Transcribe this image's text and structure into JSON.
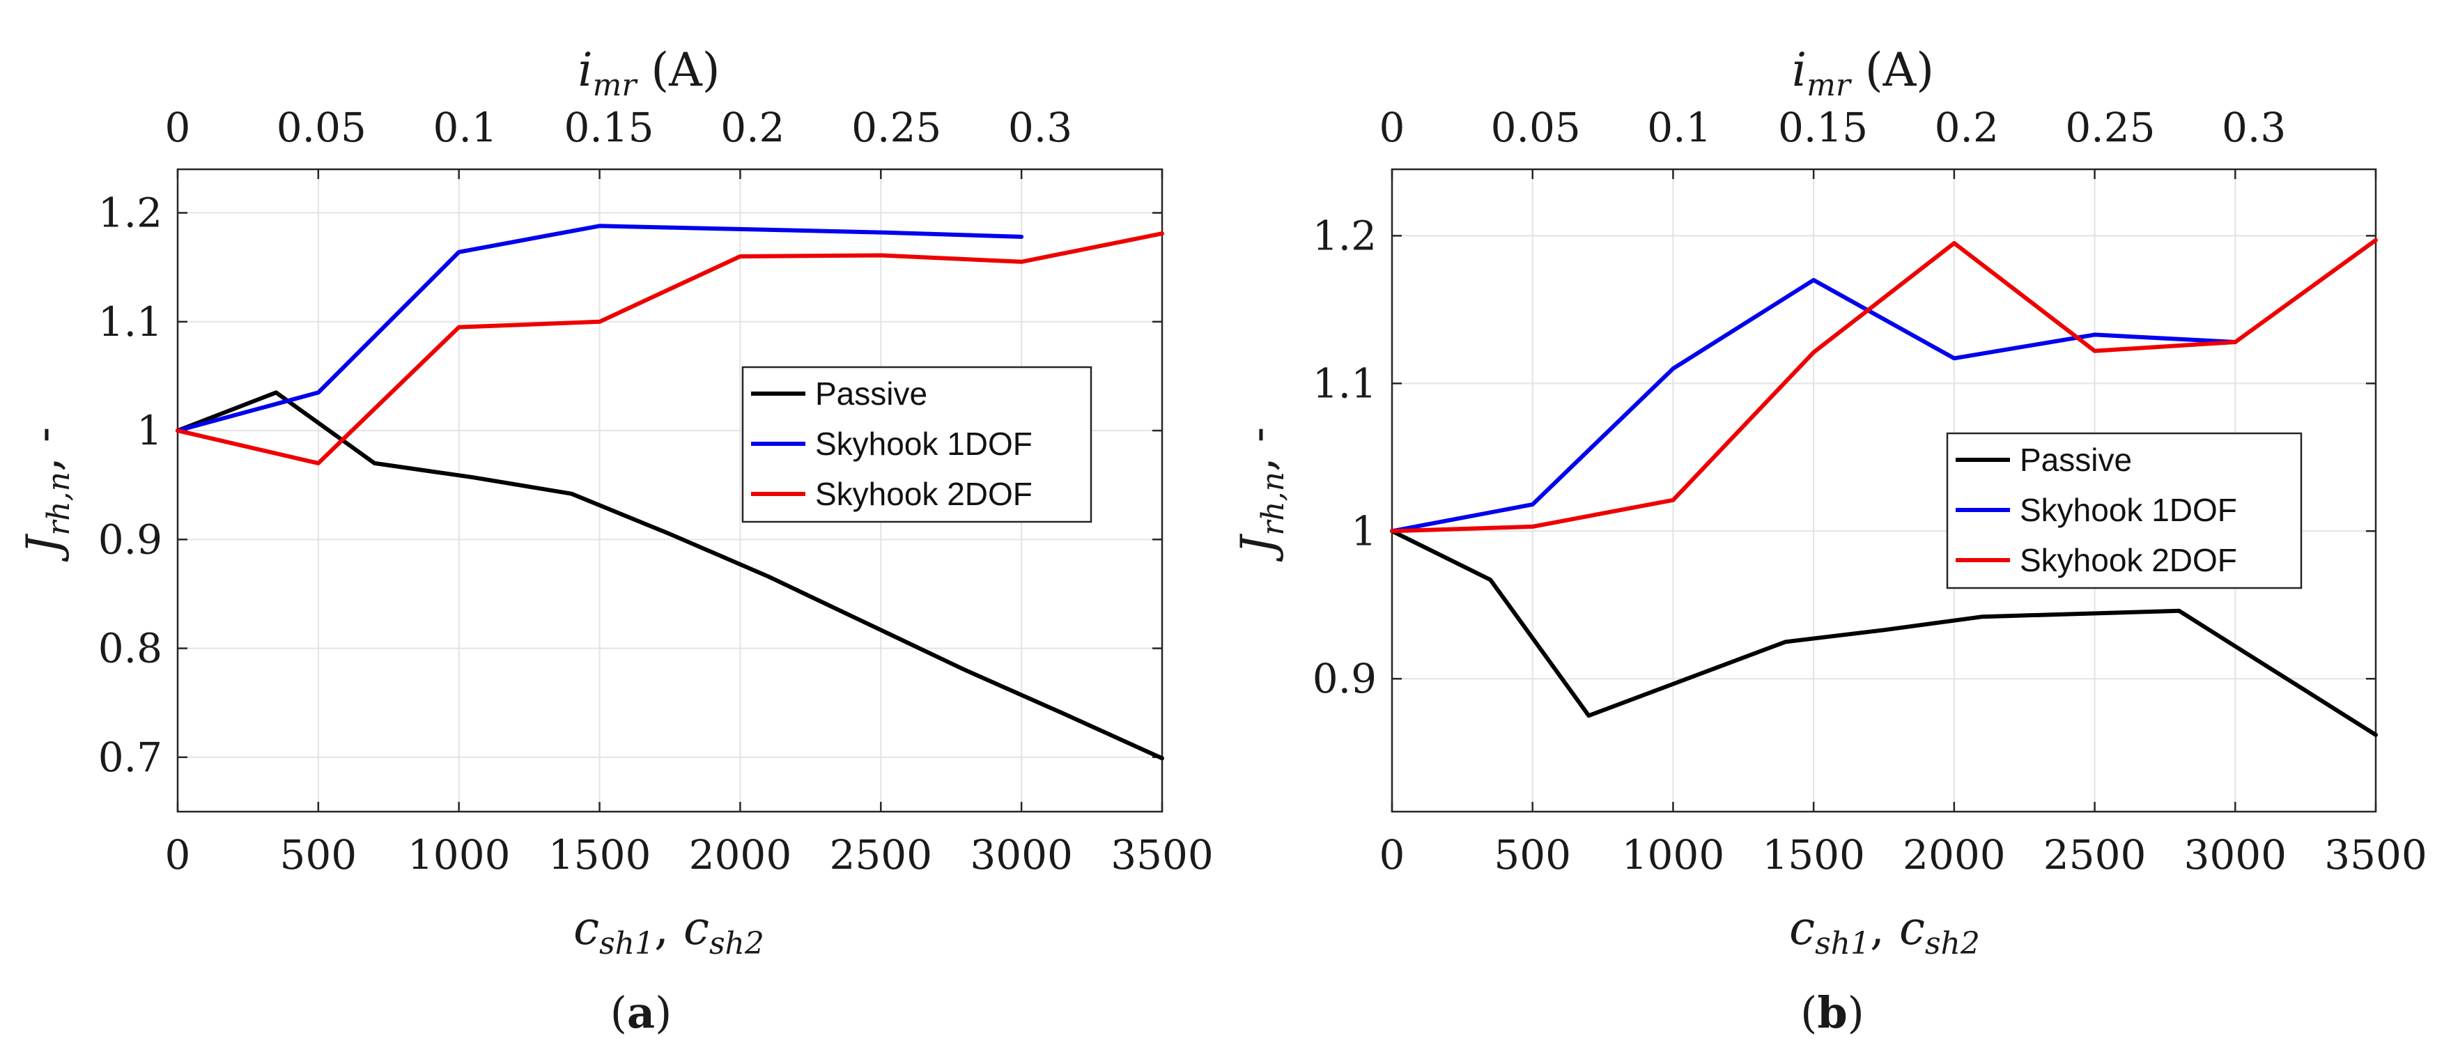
{
  "chart_data": [
    {
      "type": "line",
      "panel_label": "(a)",
      "panel_label_parts": [
        "(",
        "a",
        ")"
      ],
      "xlabel": "c_sh1, c_sh2",
      "xlabel_parts": {
        "c": "c",
        "sub1": "sh1",
        "sep": ", ",
        "sub2": "sh2"
      },
      "ylabel": "J_rh,n, -",
      "ylabel_parts": {
        "j": "J",
        "sub": "rh,n",
        "suffix": ", -"
      },
      "x2label": "i_mr (A)",
      "x2label_parts": {
        "i": "i",
        "sub": "mr",
        "unit": " (A)"
      },
      "xlim": [
        0,
        3500
      ],
      "ylim": [
        0.65,
        1.24
      ],
      "xticks": [
        "0",
        "500",
        "1000",
        "1500",
        "2000",
        "2500",
        "3000",
        "3500"
      ],
      "yticks": [
        "0.7",
        "0.8",
        "0.9",
        "1",
        "1.1",
        "1.2"
      ],
      "x2ticks": [
        "0",
        "0.05",
        "0.1",
        "0.15",
        "0.2",
        "0.25",
        "0.3"
      ],
      "legend_position": "right",
      "grid": true,
      "series": [
        {
          "name": "Passive",
          "color": "#000000",
          "x": [
            0,
            350,
            700,
            1050,
            1400,
            1750,
            2100,
            2450,
            2800,
            3150,
            3500
          ],
          "y": [
            1.0,
            1.035,
            0.97,
            0.957,
            0.942,
            0.905,
            0.866,
            0.823,
            0.78,
            0.74,
            0.699
          ]
        },
        {
          "name": "Skyhook 1DOF",
          "color": "#0000ee",
          "x": [
            0,
            500,
            1000,
            1500,
            2000,
            2500,
            3000
          ],
          "y": [
            1.0,
            1.035,
            1.164,
            1.188,
            1.185,
            1.182,
            1.178
          ]
        },
        {
          "name": "Skyhook 2DOF",
          "color": "#ee0000",
          "x": [
            0,
            500,
            1000,
            1500,
            2000,
            2500,
            3000,
            3500
          ],
          "y": [
            1.0,
            0.97,
            1.095,
            1.1,
            1.16,
            1.161,
            1.155,
            1.181
          ]
        }
      ]
    },
    {
      "type": "line",
      "panel_label": "(b)",
      "panel_label_parts": [
        "(",
        "b",
        ")"
      ],
      "xlabel": "c_sh1, c_sh2",
      "xlabel_parts": {
        "c": "c",
        "sub1": "sh1",
        "sep": ", ",
        "sub2": "sh2"
      },
      "ylabel": "J_rh,n, -",
      "ylabel_parts": {
        "j": "J",
        "sub": "rh,n",
        "suffix": ", -"
      },
      "x2label": "i_mr (A)",
      "x2label_parts": {
        "i": "i",
        "sub": "mr",
        "unit": " (A)"
      },
      "xlim": [
        0,
        3500
      ],
      "ylim": [
        0.81,
        1.245
      ],
      "xticks": [
        "0",
        "500",
        "1000",
        "1500",
        "2000",
        "2500",
        "3000",
        "3500"
      ],
      "yticks": [
        "0.9",
        "1",
        "1.1",
        "1.2"
      ],
      "x2ticks": [
        "0",
        "0.05",
        "0.1",
        "0.15",
        "0.2",
        "0.25",
        "0.3"
      ],
      "legend_position": "right",
      "grid": true,
      "series": [
        {
          "name": "Passive",
          "color": "#000000",
          "x": [
            0,
            350,
            700,
            1050,
            1400,
            1750,
            2100,
            2450,
            2800,
            3150,
            3500
          ],
          "y": [
            1.0,
            0.967,
            0.875,
            0.9,
            0.925,
            0.933,
            0.942,
            0.944,
            0.946,
            0.904,
            0.862
          ]
        },
        {
          "name": "Skyhook 1DOF",
          "color": "#0000ee",
          "x": [
            0,
            500,
            1000,
            1500,
            2000,
            2500,
            3000
          ],
          "y": [
            1.0,
            1.018,
            1.11,
            1.17,
            1.117,
            1.133,
            1.128
          ]
        },
        {
          "name": "Skyhook 2DOF",
          "color": "#ee0000",
          "x": [
            0,
            500,
            1000,
            1500,
            2000,
            2500,
            3000,
            3500
          ],
          "y": [
            1.0,
            1.003,
            1.021,
            1.121,
            1.195,
            1.122,
            1.128,
            1.197
          ]
        }
      ]
    }
  ]
}
